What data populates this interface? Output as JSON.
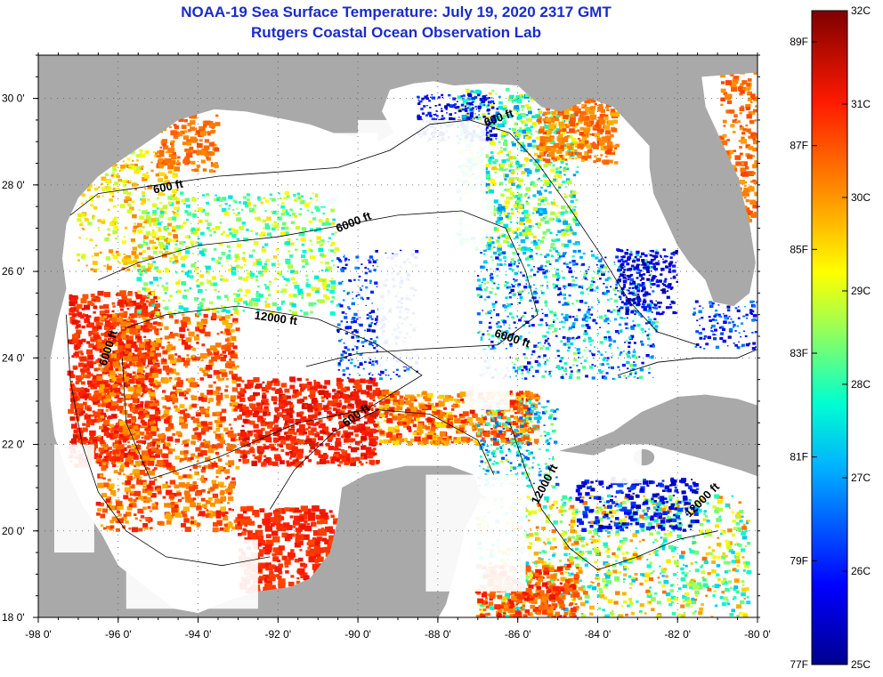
{
  "header": {
    "title": "NOAA-19 Sea Surface Temperature:  July 19, 2020 2317 GMT",
    "subtitle": "Rutgers Coastal Ocean Observation Lab"
  },
  "map": {
    "lat_range": [
      18,
      31
    ],
    "lon_range": [
      -98,
      -80
    ],
    "lat_ticks": [
      {
        "lat": 30,
        "label": "30 0'"
      },
      {
        "lat": 28,
        "label": "28 0'"
      },
      {
        "lat": 26,
        "label": "26 0'"
      },
      {
        "lat": 24,
        "label": "24 0'"
      },
      {
        "lat": 22,
        "label": "22 0'"
      },
      {
        "lat": 20,
        "label": "20 0'"
      },
      {
        "lat": 18,
        "label": "18 0'"
      }
    ],
    "lon_ticks": [
      {
        "lon": -98,
        "label": "-98 0'"
      },
      {
        "lon": -96,
        "label": "-96 0'"
      },
      {
        "lon": -94,
        "label": "-94 0'"
      },
      {
        "lon": -92,
        "label": "-92 0'"
      },
      {
        "lon": -90,
        "label": "-90 0'"
      },
      {
        "lon": -88,
        "label": "-88 0'"
      },
      {
        "lon": -86,
        "label": "-86 0'"
      },
      {
        "lon": -84,
        "label": "-84 0'"
      },
      {
        "lon": -82,
        "label": "-82 0'"
      },
      {
        "lon": -80,
        "label": "-80 0'"
      }
    ],
    "contour_labels": [
      {
        "text": "600 ft",
        "lon": -86.8,
        "lat": 29.35,
        "angle": -20
      },
      {
        "text": "600 ft",
        "lon": -95.1,
        "lat": 27.8,
        "angle": -12
      },
      {
        "text": "6000 ft",
        "lon": -90.5,
        "lat": 26.9,
        "angle": -22
      },
      {
        "text": "12000 ft",
        "lon": -92.6,
        "lat": 24.9,
        "angle": 8
      },
      {
        "text": "6000 ft",
        "lon": -86.6,
        "lat": 24.5,
        "angle": 18
      },
      {
        "text": "6000 ft",
        "lon": -96.3,
        "lat": 23.8,
        "angle": -72
      },
      {
        "text": "600 ft",
        "lon": -90.3,
        "lat": 22.4,
        "angle": -35
      },
      {
        "text": "12000 ft",
        "lon": -85.5,
        "lat": 20.6,
        "angle": -62
      },
      {
        "text": "12000 ft",
        "lon": -81.7,
        "lat": 20.3,
        "angle": -45
      }
    ],
    "land_color": "#a9a9a9",
    "cloud_color": "#ffffff"
  },
  "colorbar": {
    "min_c": 25,
    "max_c": 32,
    "celsius_labels": [
      "32C",
      "31C",
      "30C",
      "29C",
      "28C",
      "27C",
      "26C",
      "25C"
    ],
    "fahrenheit_labels": [
      {
        "label": "89F",
        "value_f": 89
      },
      {
        "label": "87F",
        "value_f": 87
      },
      {
        "label": "85F",
        "value_f": 85
      },
      {
        "label": "83F",
        "value_f": 83
      },
      {
        "label": "81F",
        "value_f": 81
      },
      {
        "label": "79F",
        "value_f": 79
      },
      {
        "label": "77F",
        "value_f": 77
      }
    ]
  }
}
